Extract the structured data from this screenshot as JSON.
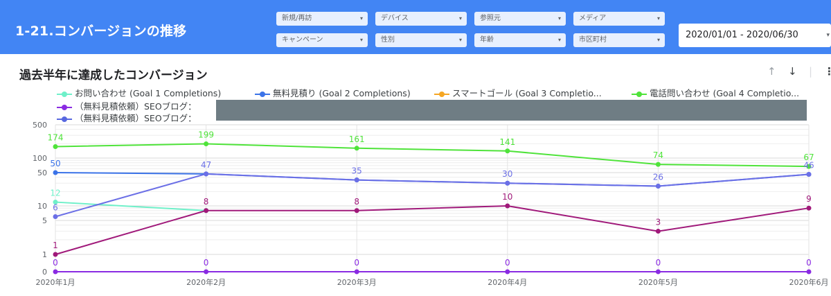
{
  "header": {
    "title": "1-21.コンバージョンの推移",
    "filters_row1": [
      "新規/再訪",
      "デバイス",
      "参照元",
      "メディア"
    ],
    "filters_row2": [
      "キャンペーン",
      "性別",
      "年齢",
      "市区町村"
    ],
    "date_range": "2020/01/01 - 2020/06/30"
  },
  "chart_title": "過去半年に達成したコンバージョン",
  "icons": {
    "sort_up": "arrow-up-icon",
    "sort_down": "arrow-down-icon",
    "more": "more-vert-icon"
  },
  "legend": [
    {
      "label": "お問い合わせ (Goal 1 Completions)",
      "color": "#6ff0c9"
    },
    {
      "label": "無料見積り (Goal 2 Completions)",
      "color": "#3b73e8"
    },
    {
      "label": "スマートゴール (Goal 3 Completio...",
      "color": "#f5a623"
    },
    {
      "label": "電話問い合わせ (Goal 4 Completio...",
      "color": "#4fe33a"
    },
    {
      "label": "（無料見積依頼）SEOブログ：",
      "color": "#8a2be2"
    },
    {
      "label": "（無料見積依頼）SEOブログ：",
      "color": "#5868e0"
    }
  ],
  "chart_data": {
    "type": "line",
    "scale": "log",
    "categories": [
      "2020年1月",
      "2020年2月",
      "2020年3月",
      "2020年4月",
      "2020年5月",
      "2020年6月"
    ],
    "y_ticks": [
      "500",
      "100",
      "50",
      "10",
      "5",
      "1",
      "0"
    ],
    "y_tick_values": [
      500,
      100,
      50,
      10,
      5,
      1,
      0
    ],
    "grid": true,
    "series": [
      {
        "name": "お問い合わせ (Goal 1 Completions)",
        "color": "#6ff0c9",
        "values": [
          12,
          8,
          null,
          null,
          null,
          null
        ],
        "labels": [
          "12",
          "",
          "",
          "",
          "",
          ""
        ]
      },
      {
        "name": "無料見積り (Goal 2 Completions)",
        "color": "#3b73e8",
        "values": [
          50,
          47,
          35,
          30,
          26,
          46
        ],
        "labels": [
          "50",
          "",
          "",
          "",
          "",
          ""
        ]
      },
      {
        "name": "電話問い合わせ (Goal 4 Completio...",
        "color": "#4fe33a",
        "values": [
          174,
          199,
          161,
          141,
          74,
          67
        ],
        "labels": [
          "174",
          "199",
          "161",
          "141",
          "74",
          "67"
        ]
      },
      {
        "name": "（無料見積依頼）SEOブログ：",
        "color": "#6b6fe6",
        "values": [
          6,
          47,
          35,
          30,
          26,
          46
        ],
        "labels": [
          "6",
          "47",
          "35",
          "30",
          "26",
          "46"
        ]
      },
      {
        "name": "",
        "color": "#a0197a",
        "values": [
          1,
          8,
          8,
          10,
          3,
          9
        ],
        "labels": [
          "1",
          "8",
          "8",
          "10",
          "3",
          "9"
        ]
      },
      {
        "name": "（無料見積依頼）SEOブログ：",
        "color": "#8a2be2",
        "values": [
          0,
          0,
          0,
          0,
          0,
          0
        ],
        "labels": [
          "0",
          "0",
          "0",
          "0",
          "0",
          "0"
        ]
      }
    ]
  }
}
